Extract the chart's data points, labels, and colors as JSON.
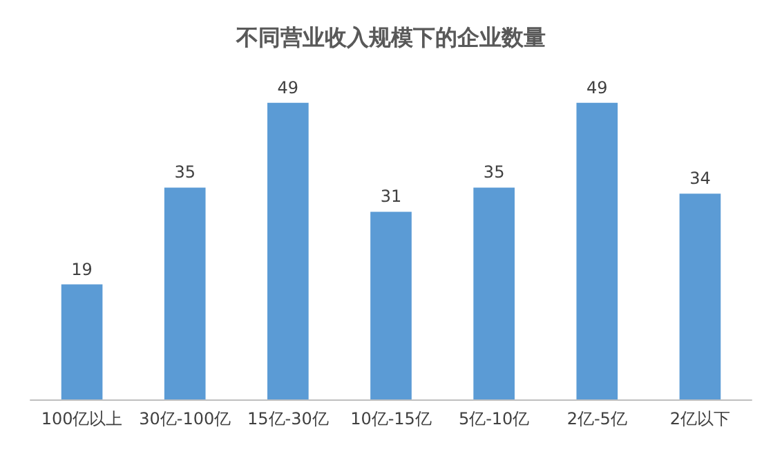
{
  "chart_data": {
    "type": "bar",
    "title": "不同营业收入规模下的企业数量",
    "categories": [
      "100亿以上",
      "30亿-100亿",
      "15亿-30亿",
      "10亿-15亿",
      "5亿-10亿",
      "2亿-5亿",
      "2亿以下"
    ],
    "values": [
      19,
      35,
      49,
      31,
      35,
      49,
      34
    ],
    "color": "#5b9bd5",
    "data_labels": true
  }
}
